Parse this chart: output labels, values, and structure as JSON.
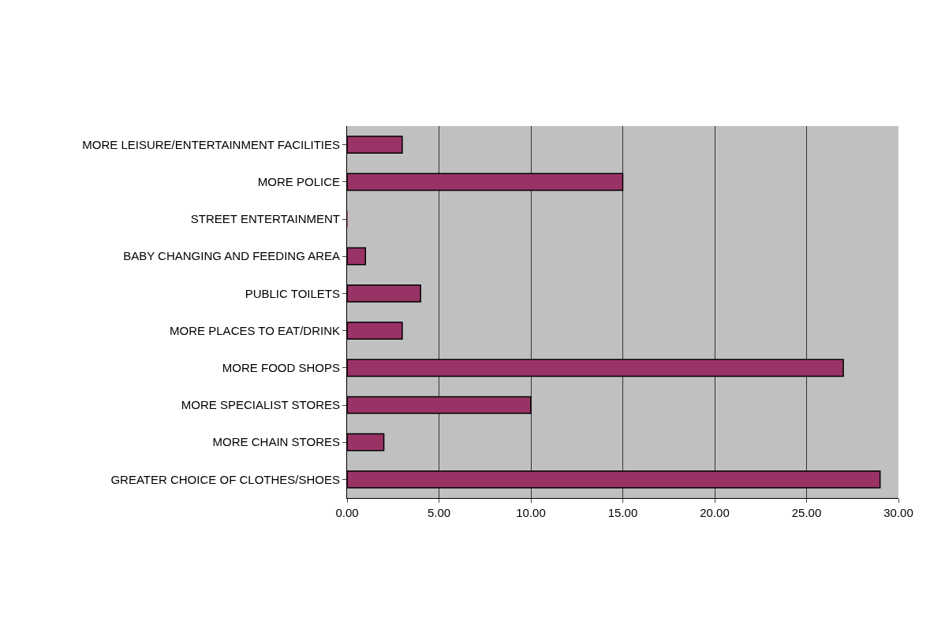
{
  "chart_data": {
    "type": "bar",
    "orientation": "horizontal",
    "categories": [
      "MORE LEISURE/ENTERTAINMENT FACILITIES",
      "MORE POLICE",
      "STREET ENTERTAINMENT",
      "BABY CHANGING AND FEEDING AREA",
      "PUBLIC TOILETS",
      "MORE PLACES TO EAT/DRINK",
      "MORE FOOD SHOPS",
      "MORE SPECIALIST STORES",
      "MORE CHAIN STORES",
      "GREATER CHOICE OF CLOTHES/SHOES"
    ],
    "values": [
      3,
      15,
      0,
      1,
      4,
      3,
      27,
      10,
      2,
      29
    ],
    "color": "#993366",
    "xlim": [
      0,
      30
    ],
    "xticks": [
      {
        "value": 0,
        "label": "0.00"
      },
      {
        "value": 5,
        "label": "5.00"
      },
      {
        "value": 10,
        "label": "10.00"
      },
      {
        "value": 15,
        "label": "15.00"
      },
      {
        "value": 20,
        "label": "20.00"
      },
      {
        "value": 25,
        "label": "25.00"
      },
      {
        "value": 30,
        "label": "30.00"
      }
    ],
    "grid": "x",
    "legend": false
  }
}
